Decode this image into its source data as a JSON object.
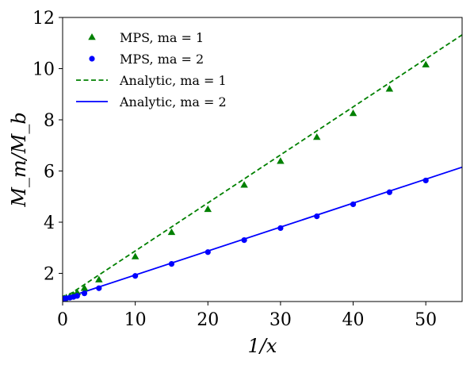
{
  "chart_data": {
    "type": "scatter",
    "xlabel": "1/x",
    "ylabel": "M_m/M_b",
    "xlim": [
      0,
      55
    ],
    "ylim": [
      0.9,
      12
    ],
    "xticks": [
      "0",
      "10",
      "20",
      "30",
      "40",
      "50"
    ],
    "yticks": [
      "2",
      "4",
      "6",
      "8",
      "10",
      "12"
    ],
    "grid": false,
    "legend_position": "top-left",
    "series": [
      {
        "name": "MPS, ma = 1",
        "kind": "markers",
        "marker": "triangle",
        "color": "#008000",
        "x": [
          0.1,
          0.25,
          0.5,
          1,
          1.5,
          2,
          3,
          5,
          10,
          15,
          20,
          25,
          30,
          35,
          40,
          45,
          50
        ],
        "y": [
          1.0,
          1.02,
          1.05,
          1.1,
          1.15,
          1.25,
          1.42,
          1.75,
          2.65,
          3.6,
          4.5,
          5.45,
          6.38,
          7.32,
          8.25,
          9.2,
          10.15
        ]
      },
      {
        "name": "MPS, ma = 2",
        "kind": "markers",
        "marker": "circle",
        "color": "#0000ff",
        "x": [
          0.1,
          0.25,
          0.5,
          1,
          1.5,
          2,
          3,
          5,
          10,
          15,
          20,
          25,
          30,
          35,
          40,
          45,
          50
        ],
        "y": [
          1.0,
          1.01,
          1.03,
          1.05,
          1.08,
          1.12,
          1.22,
          1.42,
          1.9,
          2.37,
          2.83,
          3.3,
          3.77,
          4.23,
          4.7,
          5.17,
          5.63
        ]
      },
      {
        "name": "Analytic, ma = 1",
        "kind": "line",
        "style": "dashed",
        "color": "#008000",
        "x": [
          0,
          55
        ],
        "y": [
          1.0,
          11.32
        ]
      },
      {
        "name": "Analytic, ma = 2",
        "kind": "line",
        "style": "solid",
        "color": "#0000ff",
        "x": [
          0,
          55
        ],
        "y": [
          1.0,
          6.15
        ]
      }
    ]
  }
}
